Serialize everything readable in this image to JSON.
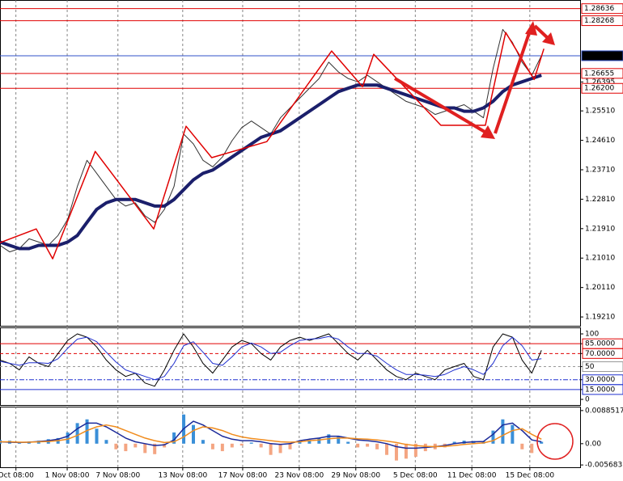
{
  "chart_data": [
    {
      "type": "line",
      "xlim": [
        0,
        120
      ],
      "ylim": [
        1.1894,
        1.289
      ],
      "x": [
        0,
        2,
        4,
        6,
        8,
        10,
        12,
        14,
        16,
        18,
        20,
        22,
        24,
        26,
        28,
        30,
        32,
        34,
        36,
        38,
        40,
        42,
        44,
        46,
        48,
        50,
        52,
        54,
        56,
        58,
        60,
        62,
        64,
        66,
        68,
        70,
        72,
        74,
        76,
        78,
        80,
        82,
        84,
        86,
        88,
        90,
        92,
        94,
        96,
        98,
        100,
        102,
        104,
        106,
        108,
        110,
        112
      ],
      "series": [
        {
          "color": "#333333",
          "width": 1,
          "values": [
            1.214,
            1.212,
            1.213,
            1.216,
            1.215,
            1.214,
            1.217,
            1.222,
            1.232,
            1.24,
            1.236,
            1.232,
            1.228,
            1.226,
            1.227,
            1.223,
            1.221,
            1.225,
            1.232,
            1.248,
            1.245,
            1.24,
            1.238,
            1.241,
            1.246,
            1.25,
            1.252,
            1.25,
            1.248,
            1.253,
            1.256,
            1.259,
            1.262,
            1.265,
            1.27,
            1.267,
            1.265,
            1.264,
            1.266,
            1.264,
            1.262,
            1.26,
            1.258,
            1.257,
            1.256,
            1.254,
            1.255,
            1.256,
            1.257,
            1.255,
            1.253,
            1.268,
            1.28,
            1.276,
            1.27,
            1.266,
            1.272
          ]
        },
        {
          "color": "#1b1f6b",
          "width": 4,
          "values": [
            1.215,
            1.214,
            1.213,
            1.213,
            1.214,
            1.214,
            1.214,
            1.215,
            1.217,
            1.221,
            1.225,
            1.227,
            1.228,
            1.228,
            1.228,
            1.227,
            1.226,
            1.226,
            1.228,
            1.231,
            1.234,
            1.236,
            1.237,
            1.239,
            1.241,
            1.243,
            1.245,
            1.247,
            1.248,
            1.249,
            1.251,
            1.253,
            1.255,
            1.257,
            1.259,
            1.261,
            1.262,
            1.263,
            1.263,
            1.263,
            1.262,
            1.261,
            1.26,
            1.259,
            1.258,
            1.257,
            1.256,
            1.256,
            1.255,
            1.255,
            1.256,
            1.258,
            1.261,
            1.263,
            1.264,
            1.265,
            1.266
          ]
        },
        {
          "color": "#e00000",
          "width": 1.5,
          "x": [
            0,
            7.5,
            10.9,
            19.7,
            31.8,
            38.5,
            43.8,
            55.2,
            68.6,
            75,
            77.3,
            91.2,
            100.4,
            104.6,
            110.5,
            112.5
          ],
          "values": [
            1.2148,
            1.219,
            1.2099,
            1.2427,
            1.219,
            1.2504,
            1.2408,
            1.2457,
            1.2734,
            1.2625,
            1.2724,
            1.2507,
            1.2507,
            1.2791,
            1.2647,
            1.2741
          ]
        }
      ],
      "yticks": [
        {
          "value": 1.2551,
          "label": "1.25510"
        },
        {
          "value": 1.2461,
          "label": "1.24610"
        },
        {
          "value": 1.2371,
          "label": "1.23710"
        },
        {
          "value": 1.2281,
          "label": "1.22810"
        },
        {
          "value": 1.2191,
          "label": "1.21910"
        },
        {
          "value": 1.2101,
          "label": "1.21010"
        },
        {
          "value": 1.2011,
          "label": "1.20110"
        },
        {
          "value": 1.1921,
          "label": "1.19210"
        },
        1.26395
      ],
      "levels": [
        {
          "value": 1.28636,
          "label": "1.28636",
          "color": "#e00000"
        },
        {
          "value": 1.28268,
          "label": "1.28268",
          "color": "#e00000"
        },
        {
          "value": 1.27196,
          "label": "1.27196",
          "color": "#3050c8"
        },
        {
          "value": 1.26655,
          "label": "1.26655",
          "color": "#e00000"
        },
        {
          "value": 1.262,
          "label": "1.26200",
          "color": "#e00000"
        }
      ]
    },
    {
      "type": "line",
      "xlim": [
        0,
        120
      ],
      "ylim": [
        -8.6,
        109.9
      ],
      "x": [
        0,
        2,
        4,
        6,
        8,
        10,
        12,
        14,
        16,
        18,
        20,
        22,
        24,
        26,
        28,
        30,
        32,
        34,
        36,
        38,
        40,
        42,
        44,
        46,
        48,
        50,
        52,
        54,
        56,
        58,
        60,
        62,
        64,
        66,
        68,
        70,
        72,
        74,
        76,
        78,
        80,
        82,
        84,
        86,
        88,
        90,
        92,
        94,
        96,
        98,
        100,
        102,
        104,
        106,
        108,
        110,
        112
      ],
      "series": [
        {
          "color": "#000000",
          "width": 1,
          "values": [
            60,
            55,
            45,
            65,
            55,
            50,
            70,
            90,
            100,
            95,
            80,
            60,
            45,
            35,
            40,
            25,
            20,
            45,
            75,
            100,
            80,
            55,
            40,
            60,
            80,
            90,
            85,
            70,
            60,
            80,
            90,
            95,
            90,
            95,
            100,
            85,
            70,
            60,
            75,
            60,
            45,
            35,
            30,
            40,
            35,
            30,
            45,
            50,
            55,
            35,
            30,
            80,
            100,
            95,
            60,
            40,
            75
          ]
        },
        {
          "color": "#2030d0",
          "width": 1,
          "values": [
            58,
            55,
            52,
            56,
            56,
            55,
            62,
            78,
            92,
            95,
            88,
            72,
            57,
            45,
            40,
            35,
            30,
            35,
            55,
            82,
            88,
            72,
            55,
            52,
            65,
            80,
            86,
            80,
            70,
            72,
            82,
            90,
            92,
            93,
            96,
            92,
            80,
            70,
            70,
            66,
            55,
            45,
            38,
            38,
            37,
            35,
            38,
            45,
            50,
            45,
            38,
            55,
            82,
            95,
            82,
            60,
            62
          ]
        }
      ],
      "yticks": [
        100,
        {
          "value": 85,
          "label": "85.0000"
        },
        {
          "value": 70,
          "label": "70.0000"
        },
        50,
        {
          "value": 30,
          "label": "30.0000"
        },
        {
          "value": 15,
          "label": "15.0000"
        },
        0
      ],
      "levels": [
        {
          "value": 85,
          "color": "#e00000",
          "dash": "none"
        },
        {
          "value": 70,
          "color": "#e00000",
          "dash": "4 3"
        },
        {
          "value": 50,
          "color": "#999999",
          "dash": "3 3"
        },
        {
          "value": 30,
          "color": "#2030d0",
          "dash": "6 2 2 2"
        },
        {
          "value": 15,
          "color": "#2030d0",
          "dash": "none"
        }
      ]
    },
    {
      "type": "bar",
      "xlim": [
        0,
        120
      ],
      "ylim": [
        -0.0063,
        0.0099
      ],
      "x": [
        0,
        2,
        4,
        6,
        8,
        10,
        12,
        14,
        16,
        18,
        20,
        22,
        24,
        26,
        28,
        30,
        32,
        34,
        36,
        38,
        40,
        42,
        44,
        46,
        48,
        50,
        52,
        54,
        56,
        58,
        60,
        62,
        64,
        66,
        68,
        70,
        72,
        74,
        76,
        78,
        80,
        82,
        84,
        86,
        88,
        90,
        92,
        94,
        96,
        98,
        100,
        102,
        104,
        106,
        108,
        110,
        112
      ],
      "bars": {
        "color_up": "#3a8fd8",
        "color_down": "#f4a582",
        "values": [
          0.001,
          0.0008,
          0.0005,
          0.0006,
          0.0008,
          0.0012,
          0.0015,
          0.003,
          0.0055,
          0.0065,
          0.004,
          0.001,
          -0.0015,
          -0.002,
          -0.001,
          -0.0025,
          -0.0028,
          -0.001,
          0.003,
          0.0078,
          0.005,
          0.001,
          -0.0015,
          -0.002,
          -0.001,
          -0.0005,
          0.0003,
          -0.001,
          -0.003,
          -0.0025,
          -0.0015,
          0.0005,
          0.001,
          0.0015,
          0.0025,
          0.002,
          0.0005,
          -0.001,
          -0.0008,
          -0.0015,
          -0.003,
          -0.0045,
          -0.004,
          -0.0035,
          -0.002,
          -0.0015,
          -0.001,
          0.0005,
          0.0008,
          0.0007,
          0.0006,
          0.0035,
          0.0065,
          0.005,
          -0.0015,
          -0.0025,
          0.0005
        ]
      },
      "series": [
        {
          "color": "#1b2a9a",
          "width": 1.5,
          "values": [
            0.0005,
            0.0004,
            0.0003,
            0.0004,
            0.0006,
            0.0008,
            0.0012,
            0.002,
            0.004,
            0.0055,
            0.0055,
            0.0045,
            0.003,
            0.0015,
            0.0005,
            0,
            -0.0005,
            -0.0003,
            0.001,
            0.004,
            0.006,
            0.005,
            0.0035,
            0.002,
            0.0012,
            0.0008,
            0.0008,
            0.0005,
            0,
            -0.0002,
            0,
            0.0008,
            0.0012,
            0.0015,
            0.002,
            0.002,
            0.0015,
            0.001,
            0.0008,
            0.0005,
            0,
            -0.0008,
            -0.0012,
            -0.0012,
            -0.001,
            -0.0008,
            -0.0005,
            0,
            0.0003,
            0.0005,
            0.0006,
            0.0025,
            0.005,
            0.0055,
            0.0035,
            0.001,
            0.0005
          ]
        },
        {
          "color": "#f08c1e",
          "width": 1.5,
          "values": [
            0.0005,
            0.0005,
            0.0004,
            0.0004,
            0.0005,
            0.0006,
            0.0008,
            0.0012,
            0.0022,
            0.0035,
            0.0045,
            0.005,
            0.0045,
            0.0035,
            0.0025,
            0.0015,
            0.0008,
            0.0003,
            0.0005,
            0.0018,
            0.0035,
            0.0045,
            0.0042,
            0.0035,
            0.0025,
            0.0018,
            0.0014,
            0.0011,
            0.0008,
            0.0005,
            0.0004,
            0.0005,
            0.0008,
            0.001,
            0.0013,
            0.0015,
            0.0015,
            0.0013,
            0.0012,
            0.001,
            0.0007,
            0.0003,
            -0.0002,
            -0.0005,
            -0.0007,
            -0.0008,
            -0.0007,
            -0.0005,
            -0.0002,
            0,
            0.0002,
            0.0008,
            0.0022,
            0.0035,
            0.004,
            0.0025,
            0.0012
          ]
        }
      ],
      "yticks": [
        0.0088517,
        {
          "value": 0,
          "label": "0.00"
        },
        -0.005683
      ],
      "xticks": [
        {
          "value": 3.3,
          "label": "Oct 08:00"
        },
        {
          "value": 13.9,
          "label": "1 Nov 08:00"
        },
        {
          "value": 24.4,
          "label": "7 Nov 08:00"
        },
        {
          "value": 37.8,
          "label": "13 Nov 08:00"
        },
        {
          "value": 50.2,
          "label": "17 Nov 08:00"
        },
        {
          "value": 61.9,
          "label": "23 Nov 08:00"
        },
        {
          "value": 73.6,
          "label": "29 Nov 08:00"
        },
        {
          "value": 85.9,
          "label": "5 Dec 08:00"
        },
        {
          "value": 97.6,
          "label": "11 Dec 08:00"
        },
        {
          "value": 109.6,
          "label": "15 Dec 08:00"
        }
      ]
    }
  ]
}
